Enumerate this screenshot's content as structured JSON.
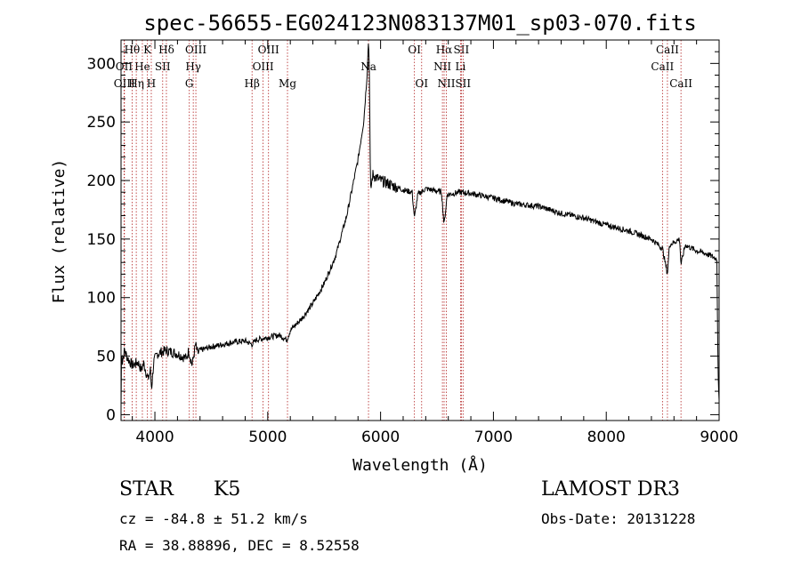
{
  "chart_data": {
    "type": "line",
    "title": "spec-56655-EG024123N083137M01_sp03-070.fits",
    "xlabel": "Wavelength (Å)",
    "ylabel": "Flux (relative)",
    "xlim": [
      3700,
      9000
    ],
    "ylim": [
      -5,
      320
    ],
    "xticks": [
      4000,
      5000,
      6000,
      7000,
      8000,
      9000
    ],
    "yticks": [
      0,
      50,
      100,
      150,
      200,
      250,
      300
    ],
    "series": [
      {
        "name": "flux",
        "anchors": [
          [
            3700,
            5
          ],
          [
            3705,
            60
          ],
          [
            3712,
            45
          ],
          [
            3730,
            55
          ],
          [
            3760,
            48
          ],
          [
            3800,
            42
          ],
          [
            3850,
            45
          ],
          [
            3880,
            38
          ],
          [
            3900,
            44
          ],
          [
            3940,
            30
          ],
          [
            3960,
            38
          ],
          [
            3970,
            22
          ],
          [
            3990,
            45
          ],
          [
            4020,
            52
          ],
          [
            4100,
            55
          ],
          [
            4200,
            52
          ],
          [
            4280,
            48
          ],
          [
            4300,
            55
          ],
          [
            4330,
            42
          ],
          [
            4360,
            60
          ],
          [
            4380,
            52
          ],
          [
            4400,
            55
          ],
          [
            4500,
            58
          ],
          [
            4600,
            60
          ],
          [
            4700,
            62
          ],
          [
            4800,
            63
          ],
          [
            4860,
            60
          ],
          [
            4900,
            64
          ],
          [
            5000,
            66
          ],
          [
            5100,
            68
          ],
          [
            5170,
            64
          ],
          [
            5200,
            72
          ],
          [
            5300,
            82
          ],
          [
            5400,
            95
          ],
          [
            5500,
            112
          ],
          [
            5600,
            135
          ],
          [
            5700,
            170
          ],
          [
            5800,
            218
          ],
          [
            5850,
            250
          ],
          [
            5880,
            290
          ],
          [
            5893,
            320
          ],
          [
            5900,
            300
          ],
          [
            5910,
            190
          ],
          [
            5930,
            205
          ],
          [
            6000,
            200
          ],
          [
            6100,
            196
          ],
          [
            6200,
            192
          ],
          [
            6280,
            190
          ],
          [
            6300,
            168
          ],
          [
            6330,
            188
          ],
          [
            6400,
            193
          ],
          [
            6500,
            191
          ],
          [
            6540,
            190
          ],
          [
            6563,
            162
          ],
          [
            6590,
            188
          ],
          [
            6700,
            190
          ],
          [
            6800,
            189
          ],
          [
            7000,
            185
          ],
          [
            7200,
            180
          ],
          [
            7400,
            178
          ],
          [
            7600,
            172
          ],
          [
            7800,
            168
          ],
          [
            8000,
            162
          ],
          [
            8200,
            157
          ],
          [
            8400,
            150
          ],
          [
            8498,
            142
          ],
          [
            8542,
            120
          ],
          [
            8560,
            145
          ],
          [
            8650,
            150
          ],
          [
            8662,
            128
          ],
          [
            8700,
            145
          ],
          [
            8800,
            140
          ],
          [
            8900,
            137
          ],
          [
            8980,
            133
          ],
          [
            8990,
            40
          ],
          [
            9000,
            10
          ]
        ]
      }
    ],
    "line_markers": [
      {
        "label": "Hθ",
        "wavelength": 3798,
        "row": 0
      },
      {
        "label": "OII",
        "wavelength": 3727,
        "row": 1
      },
      {
        "label": "OIII",
        "wavelength": 3730,
        "row": 2
      },
      {
        "label": "K",
        "wavelength": 3934,
        "row": 0
      },
      {
        "label": "He",
        "wavelength": 3889,
        "row": 1
      },
      {
        "label": "Hη",
        "wavelength": 3835,
        "row": 2
      },
      {
        "label": "H",
        "wavelength": 3968,
        "row": 2
      },
      {
        "label": "Hδ",
        "wavelength": 4102,
        "row": 0
      },
      {
        "label": "SII",
        "wavelength": 4069,
        "row": 1
      },
      {
        "label": "OIII",
        "wavelength": 4363,
        "row": 0
      },
      {
        "label": "Hγ",
        "wavelength": 4340,
        "row": 1
      },
      {
        "label": "G",
        "wavelength": 4305,
        "row": 2
      },
      {
        "label": "Hβ",
        "wavelength": 4861,
        "row": 2
      },
      {
        "label": "OIII",
        "wavelength": 5007,
        "row": 0
      },
      {
        "label": "OIII",
        "wavelength": 4959,
        "row": 1
      },
      {
        "label": "Mg",
        "wavelength": 5175,
        "row": 2
      },
      {
        "label": "Na",
        "wavelength": 5893,
        "row": 1
      },
      {
        "label": "OI",
        "wavelength": 6300,
        "row": 0
      },
      {
        "label": "OI",
        "wavelength": 6364,
        "row": 2
      },
      {
        "label": "Hα",
        "wavelength": 6563,
        "row": 0
      },
      {
        "label": "NII",
        "wavelength": 6548,
        "row": 1
      },
      {
        "label": "NII",
        "wavelength": 6583,
        "row": 2
      },
      {
        "label": "SII",
        "wavelength": 6716,
        "row": 0
      },
      {
        "label": "Li",
        "wavelength": 6708,
        "row": 1
      },
      {
        "label": "SII",
        "wavelength": 6731,
        "row": 2
      },
      {
        "label": "CaII",
        "wavelength": 8542,
        "row": 0
      },
      {
        "label": "CaII",
        "wavelength": 8498,
        "row": 1
      },
      {
        "label": "CaII",
        "wavelength": 8662,
        "row": 2
      }
    ]
  },
  "info": {
    "object_class": "STAR",
    "subclass": "K5",
    "survey": "LAMOST DR3",
    "cz": "cz = -84.8 ± 51.2 km/s",
    "obs_date": "Obs-Date: 20131228",
    "coords": "RA =  38.88896, DEC =   8.52558"
  },
  "colors": {
    "line": "#000000",
    "marker": "#b22222",
    "axes": "#000000"
  }
}
